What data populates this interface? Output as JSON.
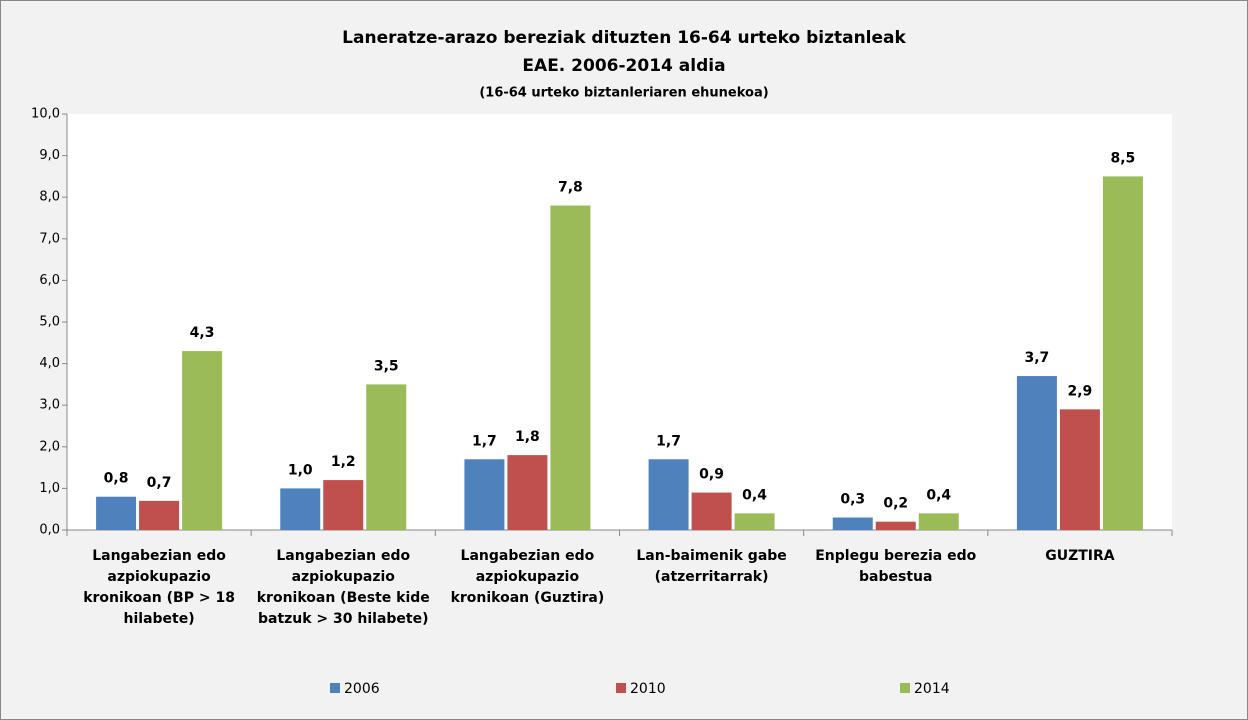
{
  "chart_data": {
    "type": "bar",
    "title": "Laneratze-arazo bereziak dituzten 16-64 urteko biztanleak",
    "subtitle": "EAE. 2006-2014 aldia",
    "note": "(16-64 urteko biztanleriaren ehunekoa)",
    "categories": [
      "Langabezian edo azpiokupazio kronikoan (BP > 18 hilabete)",
      "Langabezian edo azpiokupazio kronikoan (Beste kide batzuk > 30 hilabete)",
      "Langabezian edo azpiokupazio kronikoan (Guztira)",
      "Lan-baimenik gabe (atzerritarrak)",
      "Enplegu berezia edo babestua",
      "GUZTIRA"
    ],
    "series": [
      {
        "name": "2006",
        "color": "#4f81bd",
        "values": [
          0.8,
          1.0,
          1.7,
          1.7,
          0.3,
          3.7
        ],
        "value_labels": [
          "0,8",
          "1,0",
          "1,7",
          "1,7",
          "0,3",
          "3,7"
        ]
      },
      {
        "name": "2010",
        "color": "#c0504d",
        "values": [
          0.7,
          1.2,
          1.8,
          0.9,
          0.2,
          2.9
        ],
        "value_labels": [
          "0,7",
          "1,2",
          "1,8",
          "0,9",
          "0,2",
          "2,9"
        ]
      },
      {
        "name": "2014",
        "color": "#9bbb59",
        "values": [
          4.3,
          3.5,
          7.8,
          0.4,
          0.4,
          8.5
        ],
        "value_labels": [
          "4,3",
          "3,5",
          "7,8",
          "0,4",
          "0,4",
          "8,5"
        ]
      }
    ],
    "ylim": [
      0,
      10
    ],
    "yticks": [
      {
        "value": 0,
        "label": "0,0"
      },
      {
        "value": 1,
        "label": "1,0"
      },
      {
        "value": 2,
        "label": "2,0"
      },
      {
        "value": 3,
        "label": "3,0"
      },
      {
        "value": 4,
        "label": "4,0"
      },
      {
        "value": 5,
        "label": "5,0"
      },
      {
        "value": 6,
        "label": "6,0"
      },
      {
        "value": 7,
        "label": "7,0"
      },
      {
        "value": 8,
        "label": "8,0"
      },
      {
        "value": 9,
        "label": "9,0"
      },
      {
        "value": 10,
        "label": "10,0"
      }
    ],
    "legend": "bottom"
  }
}
